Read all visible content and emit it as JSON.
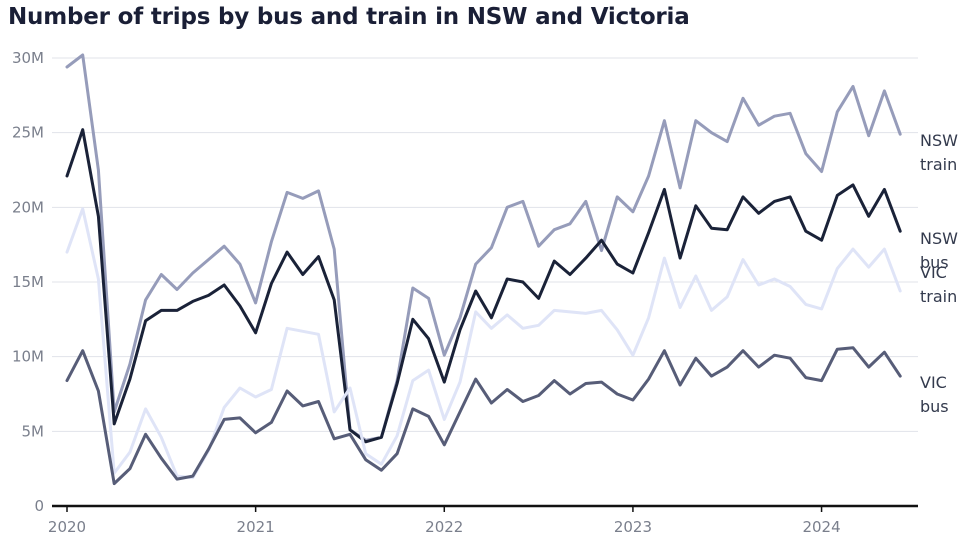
{
  "chart_data": {
    "type": "line",
    "title": "Number of trips by bus and train in NSW and Victoria",
    "xlabel": "",
    "ylabel": "",
    "x_start": "2020-01",
    "x_tick_labels": [
      "2020",
      "2021",
      "2022",
      "2023",
      "2024"
    ],
    "y_tick_labels": [
      "0",
      "5M",
      "10M",
      "15M",
      "20M",
      "25M",
      "30M"
    ],
    "ylim": [
      0,
      30
    ],
    "grid": true,
    "legend": "direct labels at right end of lines",
    "series": [
      {
        "name": "NSW train",
        "label_lines": [
          "NSW",
          "train"
        ],
        "color": "#969cba",
        "values": [
          29.4,
          30.2,
          22.5,
          6.3,
          9.5,
          13.8,
          15.5,
          14.5,
          15.6,
          16.5,
          17.4,
          16.2,
          13.6,
          17.7,
          21.0,
          20.6,
          21.1,
          17.2,
          5.1,
          4.4,
          4.6,
          8.4,
          14.6,
          13.9,
          10.1,
          12.6,
          16.2,
          17.3,
          20.0,
          20.4,
          17.4,
          18.5,
          18.9,
          20.4,
          17.1,
          20.7,
          19.7,
          22.1,
          25.8,
          21.3,
          25.8,
          25.0,
          24.4,
          27.3,
          25.5,
          26.1,
          26.3,
          23.6,
          22.4,
          26.4,
          28.1,
          24.8,
          27.8,
          24.9
        ]
      },
      {
        "name": "NSW bus",
        "label_lines": [
          "NSW",
          "bus"
        ],
        "color": "#1a2238",
        "values": [
          22.1,
          25.2,
          19.4,
          5.5,
          8.5,
          12.4,
          13.1,
          13.1,
          13.7,
          14.1,
          14.8,
          13.4,
          11.6,
          14.9,
          17.0,
          15.5,
          16.7,
          13.8,
          5.1,
          4.3,
          4.6,
          8.2,
          12.5,
          11.2,
          8.3,
          11.8,
          14.4,
          12.6,
          15.2,
          15.0,
          13.9,
          16.4,
          15.5,
          16.6,
          17.8,
          16.2,
          15.6,
          18.3,
          21.2,
          16.6,
          20.1,
          18.6,
          18.5,
          20.7,
          19.6,
          20.4,
          20.7,
          18.4,
          17.8,
          20.8,
          21.5,
          19.4,
          21.2,
          18.4
        ]
      },
      {
        "name": "VIC train",
        "label_lines": [
          "VIC",
          "train"
        ],
        "color": "#dfe4f7",
        "values": [
          17.0,
          19.9,
          15.2,
          2.2,
          3.6,
          6.5,
          4.6,
          2.0,
          1.9,
          3.7,
          6.6,
          7.9,
          7.3,
          7.8,
          11.9,
          11.7,
          11.5,
          6.3,
          7.9,
          3.5,
          2.8,
          4.7,
          8.4,
          9.1,
          5.8,
          8.3,
          13.0,
          11.9,
          12.8,
          11.9,
          12.1,
          13.1,
          13.0,
          12.9,
          13.1,
          11.8,
          10.1,
          12.6,
          16.6,
          13.3,
          15.4,
          13.1,
          14.0,
          16.5,
          14.8,
          15.2,
          14.7,
          13.5,
          13.2,
          15.9,
          17.2,
          16.0,
          17.2,
          14.4
        ]
      },
      {
        "name": "VIC bus",
        "label_lines": [
          "VIC",
          "bus"
        ],
        "color": "#575d78",
        "values": [
          8.4,
          10.4,
          7.7,
          1.5,
          2.5,
          4.8,
          3.2,
          1.8,
          2.0,
          3.8,
          5.8,
          5.9,
          4.9,
          5.6,
          7.7,
          6.7,
          7.0,
          4.5,
          4.8,
          3.1,
          2.4,
          3.5,
          6.5,
          6.0,
          4.1,
          6.3,
          8.5,
          6.9,
          7.8,
          7.0,
          7.4,
          8.4,
          7.5,
          8.2,
          8.3,
          7.5,
          7.1,
          8.5,
          10.4,
          8.1,
          9.9,
          8.7,
          9.3,
          10.4,
          9.3,
          10.1,
          9.9,
          8.6,
          8.4,
          10.5,
          10.6,
          9.3,
          10.3,
          8.7
        ]
      }
    ]
  }
}
